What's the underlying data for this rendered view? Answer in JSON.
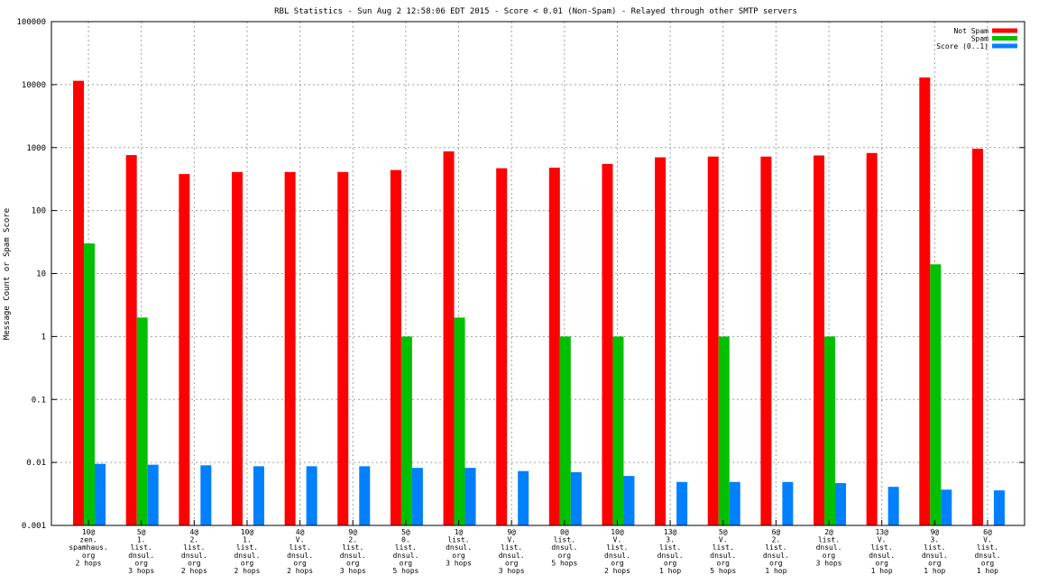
{
  "chart_data": {
    "type": "bar",
    "title": "RBL Statistics - Sun Aug  2 12:58:06 EDT 2015 - Score < 0.01 (Non-Spam) - Relayed through other SMTP servers",
    "xlabel": "",
    "ylabel": "Message Count or Spam Score",
    "y_scale": "log",
    "ylim": [
      0.001,
      100000
    ],
    "y_ticks": [
      "0.001",
      "0.01",
      "0.1",
      "1",
      "10",
      "100",
      "1000",
      "10000",
      "100000"
    ],
    "grid": true,
    "legend_position": "top-right",
    "categories": [
      [
        "10@",
        "zen.",
        "spamhaus.",
        "org",
        "2 hops"
      ],
      [
        "5@",
        "1.",
        "list.",
        "dnsul.",
        "org",
        "3 hops"
      ],
      [
        "4@",
        "2.",
        "list.",
        "dnsul.",
        "org",
        "2 hops"
      ],
      [
        "10@",
        "1.",
        "list.",
        "dnsul.",
        "org",
        "2 hops"
      ],
      [
        "4@",
        "V.",
        "list.",
        "dnsul.",
        "org",
        "2 hops"
      ],
      [
        "9@",
        "2.",
        "list.",
        "dnsul.",
        "org",
        "3 hops"
      ],
      [
        "5@",
        "0.",
        "list.",
        "dnsul.",
        "org",
        "5 hops"
      ],
      [
        "1@",
        "list.",
        "dnsul.",
        "org",
        "3 hops"
      ],
      [
        "9@",
        "V.",
        "list.",
        "dnsul.",
        "org",
        "3 hops"
      ],
      [
        "0@",
        "list.",
        "dnsul.",
        "org",
        "5 hops"
      ],
      [
        "10@",
        "V.",
        "list.",
        "dnsul.",
        "org",
        "2 hops"
      ],
      [
        "13@",
        "3.",
        "list.",
        "dnsul.",
        "org",
        "1 hop"
      ],
      [
        "5@",
        "V.",
        "list.",
        "dnsul.",
        "org",
        "5 hops"
      ],
      [
        "6@",
        "2.",
        "list.",
        "dnsul.",
        "org",
        "1 hop"
      ],
      [
        "2@",
        "list.",
        "dnsul.",
        "org",
        "3 hops"
      ],
      [
        "13@",
        "V.",
        "list.",
        "dnsul.",
        "org",
        "1 hop"
      ],
      [
        "9@",
        "3.",
        "list.",
        "dnsul.",
        "org",
        "1 hop"
      ],
      [
        "6@",
        "V.",
        "list.",
        "dnsul.",
        "org",
        "1 hop"
      ]
    ],
    "series": [
      {
        "name": "Not Spam",
        "color": "#ff0000",
        "values": [
          11500,
          760,
          380,
          410,
          410,
          410,
          440,
          870,
          470,
          480,
          550,
          700,
          720,
          720,
          750,
          820,
          13000,
          960
        ]
      },
      {
        "name": "Spam",
        "color": "#00c000",
        "values": [
          30,
          2,
          null,
          null,
          null,
          null,
          1,
          2,
          null,
          1,
          1,
          null,
          1,
          null,
          1,
          null,
          14,
          null
        ]
      },
      {
        "name": "Score (0..1)",
        "color": "#0080ff",
        "values": [
          0.0095,
          0.0092,
          0.009,
          0.0087,
          0.0087,
          0.0087,
          0.0082,
          0.0082,
          0.0073,
          0.007,
          0.0061,
          0.0049,
          0.0049,
          0.0049,
          0.0047,
          0.0041,
          0.0037,
          0.0036
        ]
      }
    ]
  }
}
